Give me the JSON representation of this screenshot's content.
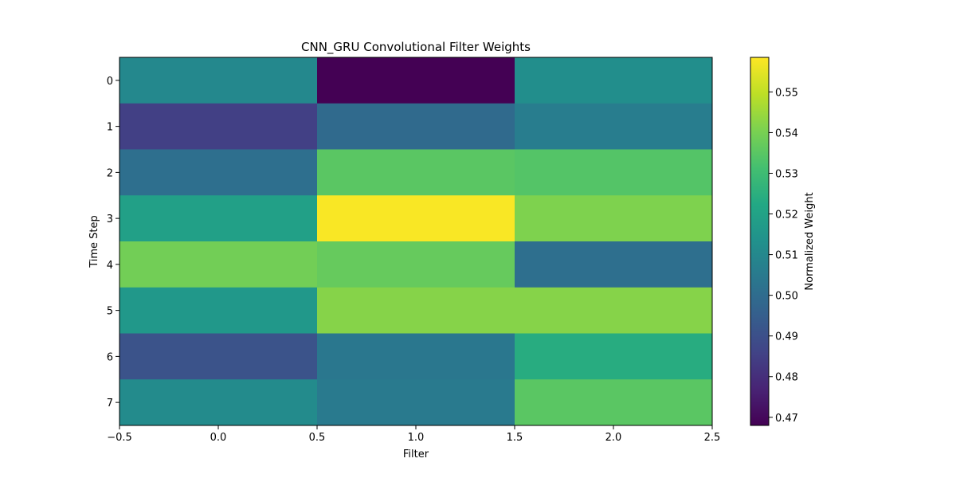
{
  "chart_data": {
    "type": "heatmap",
    "title": "CNN_GRU Convolutional Filter Weights",
    "xlabel": "Filter",
    "ylabel": "Time Step",
    "colorbar_label": "Normalized Weight",
    "colormap": "viridis",
    "xlim": [
      -0.5,
      2.5
    ],
    "ylim": [
      7.5,
      -0.5
    ],
    "x_ticks": [
      -0.5,
      0.0,
      0.5,
      1.0,
      1.5,
      2.0,
      2.5
    ],
    "x_tick_labels": [
      "−0.5",
      "0.0",
      "0.5",
      "1.0",
      "1.5",
      "2.0",
      "2.5"
    ],
    "y_ticks": [
      0,
      1,
      2,
      3,
      4,
      5,
      6,
      7
    ],
    "y_tick_labels": [
      "0",
      "1",
      "2",
      "3",
      "4",
      "5",
      "6",
      "7"
    ],
    "color_range": [
      0.468,
      0.5585
    ],
    "colorbar_ticks": [
      0.47,
      0.48,
      0.49,
      0.5,
      0.51,
      0.52,
      0.53,
      0.54,
      0.55
    ],
    "colorbar_tick_labels": [
      "0.47",
      "0.48",
      "0.49",
      "0.50",
      "0.51",
      "0.52",
      "0.53",
      "0.54",
      "0.55"
    ],
    "values": [
      [
        0.51,
        0.468,
        0.512
      ],
      [
        0.485,
        0.499,
        0.506
      ],
      [
        0.501,
        0.535,
        0.534
      ],
      [
        0.519,
        0.558,
        0.541
      ],
      [
        0.539,
        0.537,
        0.501
      ],
      [
        0.516,
        0.542,
        0.542
      ],
      [
        0.491,
        0.504,
        0.524
      ],
      [
        0.511,
        0.505,
        0.535
      ]
    ]
  }
}
